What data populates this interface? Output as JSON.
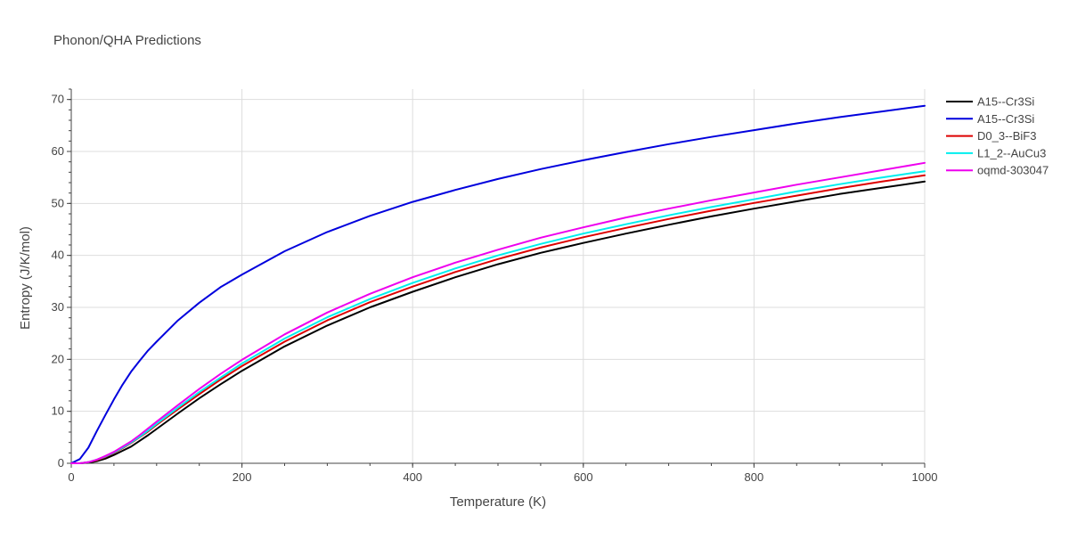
{
  "chart_data": {
    "type": "line",
    "title": "Phonon/QHA Predictions",
    "xlabel": "Temperature (K)",
    "ylabel": "Entropy (J/K/mol)",
    "xlim": [
      0,
      1000
    ],
    "ylim": [
      0,
      72
    ],
    "xticks": [
      0,
      200,
      400,
      600,
      800,
      1000
    ],
    "yticks": [
      0,
      10,
      20,
      30,
      40,
      50,
      60,
      70
    ],
    "grid": true,
    "legend_position": "top-right",
    "x": [
      0,
      10,
      20,
      30,
      40,
      50,
      60,
      70,
      80,
      90,
      100,
      125,
      150,
      175,
      200,
      250,
      300,
      350,
      400,
      450,
      500,
      550,
      600,
      650,
      700,
      750,
      800,
      850,
      900,
      950,
      1000
    ],
    "series": [
      {
        "name": "A15--Cr3Si",
        "color": "#000000",
        "values": [
          0,
          0,
          0.1,
          0.4,
          0.9,
          1.6,
          2.4,
          3.2,
          4.3,
          5.4,
          6.6,
          9.6,
          12.5,
          15.2,
          17.8,
          22.5,
          26.5,
          30.0,
          33.0,
          35.8,
          38.3,
          40.5,
          42.4,
          44.2,
          45.9,
          47.5,
          49.0,
          50.4,
          51.8,
          53.0,
          54.2
        ]
      },
      {
        "name": "A15--Cr3Si",
        "color": "#0000dd",
        "values": [
          0,
          0.8,
          3.0,
          6.2,
          9.3,
          12.3,
          15.1,
          17.6,
          19.7,
          21.7,
          23.4,
          27.5,
          30.9,
          33.9,
          36.3,
          40.8,
          44.5,
          47.6,
          50.3,
          52.6,
          54.7,
          56.6,
          58.3,
          59.9,
          61.4,
          62.8,
          64.1,
          65.4,
          66.6,
          67.7,
          68.8
        ]
      },
      {
        "name": "D0_3--BiF3",
        "color": "#dd0000",
        "values": [
          0,
          0,
          0.2,
          0.6,
          1.2,
          2.0,
          2.9,
          3.9,
          5.0,
          6.1,
          7.4,
          10.4,
          13.3,
          16.1,
          18.7,
          23.4,
          27.5,
          31.0,
          34.0,
          36.8,
          39.3,
          41.5,
          43.5,
          45.3,
          47.0,
          48.6,
          50.1,
          51.5,
          52.9,
          54.2,
          55.4
        ]
      },
      {
        "name": "L1_2--AuCu3",
        "color": "#00eeee",
        "values": [
          0,
          0,
          0.2,
          0.7,
          1.3,
          2.1,
          3.0,
          4.0,
          5.1,
          6.3,
          7.6,
          10.7,
          13.7,
          16.5,
          19.2,
          24.0,
          28.1,
          31.6,
          34.7,
          37.5,
          40.0,
          42.2,
          44.2,
          46.0,
          47.7,
          49.3,
          50.8,
          52.3,
          53.7,
          55.0,
          56.2
        ]
      },
      {
        "name": "oqmd-303047",
        "color": "#ee00ee",
        "values": [
          0,
          0,
          0.2,
          0.7,
          1.4,
          2.2,
          3.2,
          4.2,
          5.4,
          6.7,
          8.0,
          11.2,
          14.3,
          17.2,
          19.9,
          24.8,
          29.0,
          32.6,
          35.8,
          38.6,
          41.1,
          43.4,
          45.4,
          47.3,
          49.0,
          50.6,
          52.1,
          53.6,
          55.0,
          56.4,
          57.8
        ]
      }
    ]
  }
}
